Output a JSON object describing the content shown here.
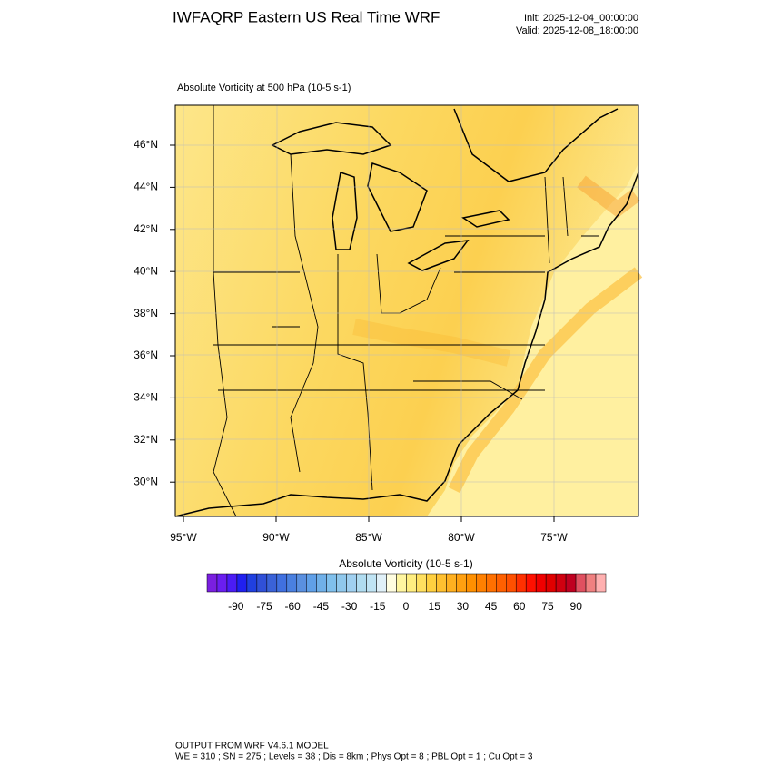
{
  "header": {
    "title": "IWFAQRP Eastern US Real Time WRF",
    "init": "Init: 2025-12-04_00:00:00",
    "valid": "Valid: 2025-12-08_18:00:00"
  },
  "map": {
    "subtitle": "Absolute Vorticity at 500 hPa   (10-5 s-1)",
    "lat_labels": [
      "46°N",
      "44°N",
      "42°N",
      "40°N",
      "38°N",
      "36°N",
      "34°N",
      "32°N",
      "30°N"
    ],
    "lon_labels": [
      "95°W",
      "90°W",
      "85°W",
      "80°W",
      "75°W"
    ]
  },
  "colorbar": {
    "title": "Absolute Vorticity  (10-5 s-1)",
    "ticks": [
      -90,
      -75,
      -60,
      -45,
      -30,
      -15,
      0,
      15,
      30,
      45,
      60,
      75,
      90
    ],
    "colors": [
      "#7a1fe0",
      "#6a1ef0",
      "#4b1cf5",
      "#2020f0",
      "#2040e0",
      "#3050d8",
      "#3a62d8",
      "#4070e0",
      "#4a80e0",
      "#5a90e0",
      "#60a0e8",
      "#70b0e8",
      "#80c0ec",
      "#90c8ec",
      "#a0d0f0",
      "#b0dcf0",
      "#c0e4f4",
      "#e0f0f8",
      "#fffde0",
      "#fff6a0",
      "#ffee80",
      "#ffe060",
      "#ffd040",
      "#ffc030",
      "#ffb020",
      "#ffa010",
      "#ff9000",
      "#ff8000",
      "#ff7000",
      "#ff6000",
      "#ff5000",
      "#ff3000",
      "#ff1000",
      "#f00000",
      "#e00000",
      "#d00010",
      "#c00020",
      "#e05060",
      "#f08080",
      "#ffb0b0"
    ]
  },
  "footer": {
    "line1": "OUTPUT FROM WRF V4.6.1 MODEL",
    "line2": "WE = 310 ; SN = 275 ; Levels = 38 ; Dis = 8km ; Phys Opt = 8 ; PBL Opt = 1 ; Cu Opt = 3"
  }
}
